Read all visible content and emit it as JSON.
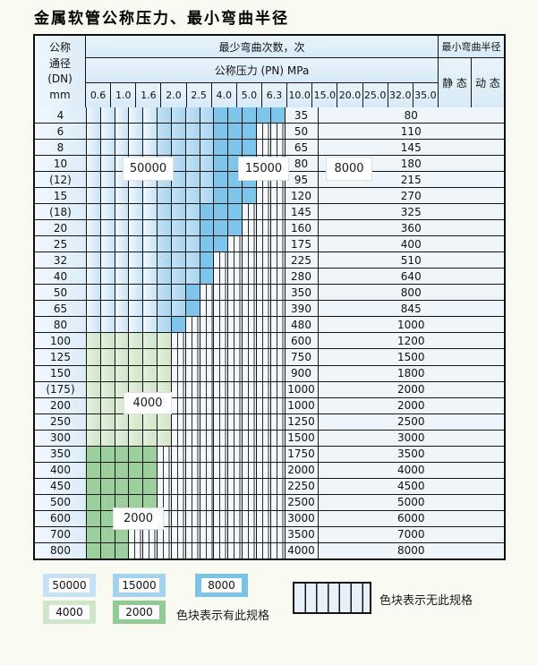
{
  "title": "金属软管公称压力、最小弯曲半径",
  "table": {
    "corner_header": [
      "公称",
      "通径",
      "(DN)",
      "mm"
    ],
    "bend_cycles_header": "最少弯曲次数，次",
    "pressure_header": "公称压力 (PN) MPa",
    "radius_header": "最小弯曲半径",
    "static_header": "静 态",
    "dynamic_header": "动 态",
    "pressure_columns": [
      "0.6",
      "1.0",
      "1.6",
      "2.0",
      "2.5",
      "4.0",
      "5.0",
      "6.3",
      "10.0",
      "15.0",
      "20.0",
      "25.0",
      "32.0",
      "35.0"
    ],
    "rows": [
      {
        "dn": "4",
        "static": "35",
        "dynamic": "80",
        "zone": "blue",
        "last": 13,
        "dark": 9
      },
      {
        "dn": "6",
        "static": "50",
        "dynamic": "110",
        "zone": "blue",
        "last": 11,
        "dark": 9
      },
      {
        "dn": "8",
        "static": "65",
        "dynamic": "145",
        "zone": "blue",
        "last": 11,
        "dark": 9
      },
      {
        "dn": "10",
        "static": "80",
        "dynamic": "180",
        "zone": "blue",
        "last": 11,
        "dark": 9
      },
      {
        "dn": "(12)",
        "static": "95",
        "dynamic": "215",
        "zone": "blue",
        "last": 11,
        "dark": 9
      },
      {
        "dn": "15",
        "static": "120",
        "dynamic": "270",
        "zone": "blue",
        "last": 11,
        "dark": 9
      },
      {
        "dn": "(18)",
        "static": "145",
        "dynamic": "325",
        "zone": "blue",
        "last": 10,
        "dark": 8
      },
      {
        "dn": "20",
        "static": "160",
        "dynamic": "360",
        "zone": "blue",
        "last": 10,
        "dark": 8
      },
      {
        "dn": "25",
        "static": "175",
        "dynamic": "400",
        "zone": "blue",
        "last": 9,
        "dark": 8
      },
      {
        "dn": "32",
        "static": "225",
        "dynamic": "510",
        "zone": "blue",
        "last": 8,
        "dark": 8
      },
      {
        "dn": "40",
        "static": "280",
        "dynamic": "640",
        "zone": "blue",
        "last": 8,
        "dark": 8
      },
      {
        "dn": "50",
        "static": "350",
        "dynamic": "800",
        "zone": "blue",
        "last": 7,
        "dark": 7
      },
      {
        "dn": "65",
        "static": "390",
        "dynamic": "845",
        "zone": "blue",
        "last": 7,
        "dark": 7
      },
      {
        "dn": "80",
        "static": "480",
        "dynamic": "1000",
        "zone": "blue",
        "last": 6,
        "dark": 6
      },
      {
        "dn": "100",
        "static": "600",
        "dynamic": "1200",
        "zone": "green4",
        "last": 5
      },
      {
        "dn": "125",
        "static": "750",
        "dynamic": "1500",
        "zone": "green4",
        "last": 5
      },
      {
        "dn": "150",
        "static": "900",
        "dynamic": "1800",
        "zone": "green4",
        "last": 5
      },
      {
        "dn": "(175)",
        "static": "1000",
        "dynamic": "2000",
        "zone": "green4",
        "last": 5
      },
      {
        "dn": "200",
        "static": "1000",
        "dynamic": "2000",
        "zone": "green4",
        "last": 5
      },
      {
        "dn": "250",
        "static": "1250",
        "dynamic": "2500",
        "zone": "green4",
        "last": 5
      },
      {
        "dn": "300",
        "static": "1500",
        "dynamic": "3000",
        "zone": "green4",
        "last": 5
      },
      {
        "dn": "350",
        "static": "1750",
        "dynamic": "3500",
        "zone": "green2",
        "last": 4
      },
      {
        "dn": "400",
        "static": "2000",
        "dynamic": "4000",
        "zone": "green2",
        "last": 4
      },
      {
        "dn": "450",
        "static": "2250",
        "dynamic": "4500",
        "zone": "green2",
        "last": 4
      },
      {
        "dn": "500",
        "static": "2500",
        "dynamic": "5000",
        "zone": "green2",
        "last": 4
      },
      {
        "dn": "600",
        "static": "3000",
        "dynamic": "6000",
        "zone": "green2",
        "last": 3
      },
      {
        "dn": "700",
        "static": "3500",
        "dynamic": "7000",
        "zone": "green2",
        "last": 2
      },
      {
        "dn": "800",
        "static": "4000",
        "dynamic": "8000",
        "zone": "green2",
        "last": 2
      }
    ]
  },
  "overlays": {
    "b50000": "50000",
    "b15000": "15000",
    "b8000": "8000",
    "g4000": "4000",
    "g2000": "2000"
  },
  "legend": {
    "swatches": [
      {
        "value": "50000",
        "type": "blue-light"
      },
      {
        "value": "15000",
        "type": "blue-mid"
      },
      {
        "value": "8000",
        "type": "blue-dark"
      },
      {
        "value": "4000",
        "type": "green-light"
      },
      {
        "value": "2000",
        "type": "green-mid"
      }
    ],
    "has_spec_text": "色块表示有此规格",
    "no_spec_text": "色块表示无此规格"
  },
  "colors": {
    "cycles_50000": "#c7e3f6",
    "cycles_15000": "#a7d5f1",
    "cycles_8000": "#7ec5eb",
    "cycles_4000": "#cfe5c8",
    "cycles_2000": "#9ccf9e",
    "header_bg": "#ddeef9",
    "grid_line": "#161616",
    "page_bg": "#f9fbf3"
  }
}
